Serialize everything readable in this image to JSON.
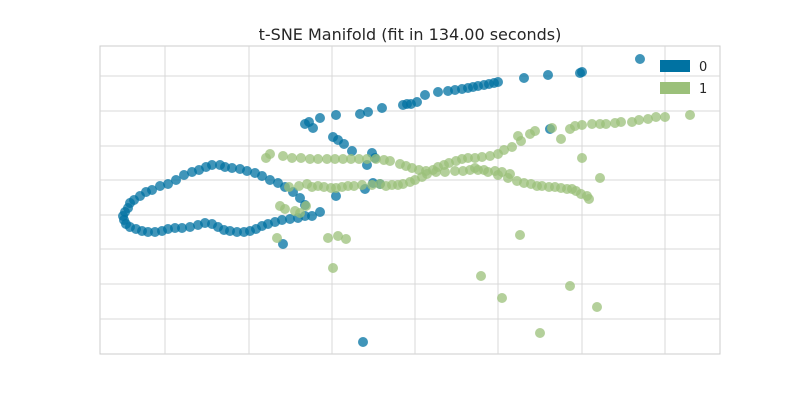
{
  "chart_data": {
    "type": "scatter",
    "title": "t-SNE Manifold (fit in 134.00 seconds)",
    "xlabel": "",
    "ylabel": "",
    "xlim": [
      0,
      620
    ],
    "ylim": [
      0,
      308
    ],
    "grid": true,
    "legend_placement": "top-right",
    "series": [
      {
        "name": "0",
        "color": "#0072A2",
        "points": [
          [
            263,
            296
          ],
          [
            183,
            198
          ],
          [
            280,
            138
          ],
          [
            205,
            159
          ],
          [
            200,
            152
          ],
          [
            193,
            146
          ],
          [
            185,
            141
          ],
          [
            178,
            137
          ],
          [
            170,
            134
          ],
          [
            162,
            130
          ],
          [
            155,
            127
          ],
          [
            147,
            125
          ],
          [
            140,
            123
          ],
          [
            132,
            122
          ],
          [
            125,
            121
          ],
          [
            120,
            119
          ],
          [
            112,
            119
          ],
          [
            106,
            121
          ],
          [
            99,
            124
          ],
          [
            92,
            126
          ],
          [
            84,
            129
          ],
          [
            76,
            134
          ],
          [
            68,
            138
          ],
          [
            60,
            140
          ],
          [
            52,
            144
          ],
          [
            46,
            146
          ],
          [
            40,
            150
          ],
          [
            34,
            154
          ],
          [
            30,
            157
          ],
          [
            28,
            162
          ],
          [
            25,
            166
          ],
          [
            23,
            170
          ],
          [
            24,
            174
          ],
          [
            26,
            178
          ],
          [
            30,
            181
          ],
          [
            36,
            183
          ],
          [
            42,
            185
          ],
          [
            48,
            186
          ],
          [
            55,
            186
          ],
          [
            62,
            185
          ],
          [
            68,
            183
          ],
          [
            75,
            182
          ],
          [
            82,
            182
          ],
          [
            90,
            181
          ],
          [
            98,
            179
          ],
          [
            105,
            177
          ],
          [
            112,
            178
          ],
          [
            118,
            181
          ],
          [
            124,
            184
          ],
          [
            130,
            185
          ],
          [
            137,
            186
          ],
          [
            144,
            186
          ],
          [
            150,
            185
          ],
          [
            156,
            183
          ],
          [
            162,
            180
          ],
          [
            168,
            178
          ],
          [
            175,
            176
          ],
          [
            182,
            174
          ],
          [
            190,
            173
          ],
          [
            198,
            172
          ],
          [
            205,
            170
          ],
          [
            212,
            170
          ],
          [
            220,
            166
          ],
          [
            236,
            150
          ],
          [
            265,
            143
          ],
          [
            273,
            137
          ],
          [
            267,
            119
          ],
          [
            275,
            112
          ],
          [
            272,
            107
          ],
          [
            252,
            105
          ],
          [
            244,
            98
          ],
          [
            238,
            94
          ],
          [
            233,
            91
          ],
          [
            213,
            82
          ],
          [
            205,
            78
          ],
          [
            209,
            76
          ],
          [
            220,
            72
          ],
          [
            236,
            69
          ],
          [
            260,
            68
          ],
          [
            268,
            66
          ],
          [
            282,
            62
          ],
          [
            303,
            59
          ],
          [
            307,
            58
          ],
          [
            311,
            58
          ],
          [
            317,
            56
          ],
          [
            325,
            49
          ],
          [
            338,
            46
          ],
          [
            348,
            45
          ],
          [
            355,
            44
          ],
          [
            362,
            43
          ],
          [
            368,
            42
          ],
          [
            373,
            41
          ],
          [
            378,
            40
          ],
          [
            384,
            39
          ],
          [
            389,
            38
          ],
          [
            394,
            37
          ],
          [
            398,
            36
          ],
          [
            424,
            32
          ],
          [
            448,
            29
          ],
          [
            482,
            26
          ],
          [
            540,
            13
          ],
          [
            450,
            83
          ],
          [
            480,
            27
          ]
        ]
      },
      {
        "name": "1",
        "color": "#9BC07A",
        "points": [
          [
            440,
            287
          ],
          [
            497,
            261
          ],
          [
            402,
            252
          ],
          [
            470,
            240
          ],
          [
            381,
            230
          ],
          [
            233,
            222
          ],
          [
            420,
            189
          ],
          [
            228,
            192
          ],
          [
            246,
            193
          ],
          [
            238,
            190
          ],
          [
            177,
            192
          ],
          [
            180,
            160
          ],
          [
            185,
            163
          ],
          [
            195,
            165
          ],
          [
            200,
            167
          ],
          [
            206,
            160
          ],
          [
            189,
            141
          ],
          [
            199,
            140
          ],
          [
            207,
            138
          ],
          [
            212,
            141
          ],
          [
            218,
            140
          ],
          [
            224,
            141
          ],
          [
            231,
            142
          ],
          [
            236,
            142
          ],
          [
            242,
            141
          ],
          [
            248,
            140
          ],
          [
            254,
            140
          ],
          [
            262,
            139
          ],
          [
            272,
            139
          ],
          [
            280,
            138
          ],
          [
            286,
            140
          ],
          [
            292,
            139
          ],
          [
            298,
            139
          ],
          [
            303,
            138
          ],
          [
            310,
            136
          ],
          [
            315,
            134
          ],
          [
            322,
            131
          ],
          [
            327,
            128
          ],
          [
            333,
            124
          ],
          [
            338,
            121
          ],
          [
            344,
            119
          ],
          [
            349,
            117
          ],
          [
            356,
            115
          ],
          [
            362,
            113
          ],
          [
            368,
            112
          ],
          [
            375,
            112
          ],
          [
            382,
            111
          ],
          [
            390,
            110
          ],
          [
            398,
            108
          ],
          [
            404,
            104
          ],
          [
            412,
            101
          ],
          [
            421,
            95
          ],
          [
            418,
            90
          ],
          [
            430,
            88
          ],
          [
            435,
            85
          ],
          [
            452,
            82
          ],
          [
            470,
            83
          ],
          [
            475,
            80
          ],
          [
            482,
            79
          ],
          [
            492,
            78
          ],
          [
            500,
            78
          ],
          [
            506,
            78
          ],
          [
            515,
            77
          ],
          [
            521,
            76
          ],
          [
            532,
            76
          ],
          [
            539,
            74
          ],
          [
            548,
            73
          ],
          [
            556,
            71
          ],
          [
            565,
            71
          ],
          [
            590,
            69
          ],
          [
            500,
            132
          ],
          [
            482,
            112
          ],
          [
            461,
            93
          ],
          [
            375,
            122
          ],
          [
            384,
            124
          ],
          [
            395,
            125
          ],
          [
            402,
            126
          ],
          [
            410,
            128
          ],
          [
            166,
            112
          ],
          [
            170,
            108
          ],
          [
            183,
            110
          ],
          [
            192,
            112
          ],
          [
            201,
            112
          ],
          [
            210,
            113
          ],
          [
            218,
            113
          ],
          [
            227,
            113
          ],
          [
            235,
            113
          ],
          [
            243,
            113
          ],
          [
            251,
            113
          ],
          [
            259,
            113
          ],
          [
            267,
            113
          ],
          [
            276,
            113
          ],
          [
            284,
            114
          ],
          [
            290,
            115
          ],
          [
            300,
            118
          ],
          [
            306,
            120
          ],
          [
            312,
            122
          ],
          [
            319,
            124
          ],
          [
            326,
            125
          ],
          [
            336,
            126
          ],
          [
            345,
            126
          ],
          [
            355,
            125
          ],
          [
            363,
            125
          ],
          [
            370,
            124
          ],
          [
            378,
            124
          ],
          [
            388,
            126
          ],
          [
            398,
            129
          ],
          [
            408,
            132
          ],
          [
            417,
            135
          ],
          [
            424,
            137
          ],
          [
            431,
            138
          ],
          [
            437,
            140
          ],
          [
            442,
            140
          ],
          [
            449,
            141
          ],
          [
            455,
            141
          ],
          [
            461,
            142
          ],
          [
            467,
            143
          ],
          [
            472,
            143
          ],
          [
            476,
            145
          ],
          [
            481,
            148
          ],
          [
            487,
            150
          ],
          [
            489,
            153
          ]
        ]
      }
    ],
    "legend": [
      {
        "label": "0",
        "color": "#0072A2"
      },
      {
        "label": "1",
        "color": "#9BC07A"
      }
    ]
  }
}
